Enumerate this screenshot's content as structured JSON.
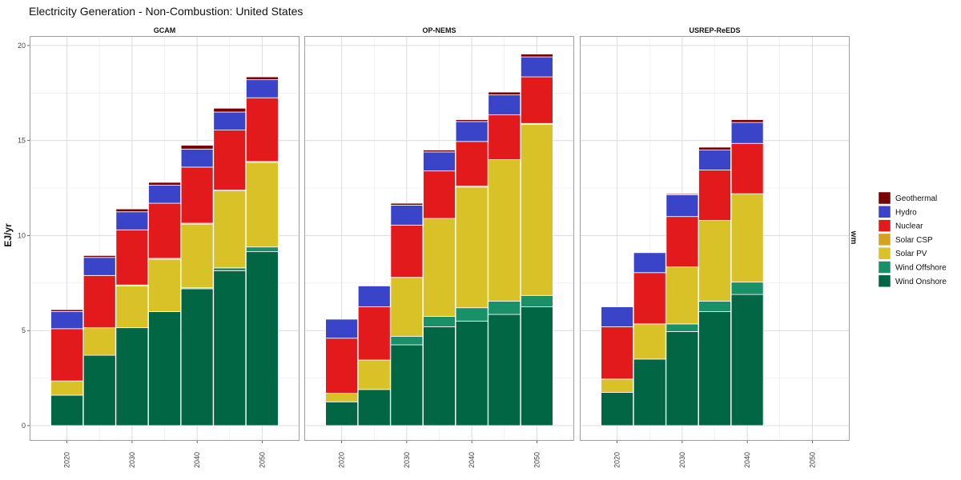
{
  "chart_data": {
    "type": "bar",
    "stacked": true,
    "title": "Electricity Generation - Non-Combustion: United States",
    "ylabel": "EJ/yr",
    "right_label": "wm",
    "ylim": [
      -0.8,
      20.5
    ],
    "yticks": [
      0,
      5,
      10,
      15,
      20
    ],
    "grid": true,
    "legend_position": "right",
    "x_ticks": [
      2020,
      2030,
      2040,
      2050
    ],
    "x_range": [
      2015,
      2055
    ],
    "series": [
      {
        "name": "Geothermal",
        "color": "#7a0000"
      },
      {
        "name": "Hydro",
        "color": "#3a44c8"
      },
      {
        "name": "Nuclear",
        "color": "#e31a1c"
      },
      {
        "name": "Solar CSP",
        "color": "#d4a21e"
      },
      {
        "name": "Solar PV",
        "color": "#d9c227"
      },
      {
        "name": "Wind Offshore",
        "color": "#1a9068"
      },
      {
        "name": "Wind Onshore",
        "color": "#006643"
      }
    ],
    "panels": [
      {
        "name": "GCAM",
        "bars": [
          {
            "x": 2020,
            "values": {
              "Wind Onshore": 1.6,
              "Wind Offshore": 0,
              "Solar PV": 0.75,
              "Solar CSP": 0,
              "Nuclear": 2.75,
              "Hydro": 0.9,
              "Geothermal": 0.1
            }
          },
          {
            "x": 2025,
            "values": {
              "Wind Onshore": 3.7,
              "Wind Offshore": 0,
              "Solar PV": 1.45,
              "Solar CSP": 0,
              "Nuclear": 2.75,
              "Hydro": 0.95,
              "Geothermal": 0.1
            }
          },
          {
            "x": 2030,
            "values": {
              "Wind Onshore": 5.15,
              "Wind Offshore": 0,
              "Solar PV": 2.2,
              "Solar CSP": 0.05,
              "Nuclear": 2.9,
              "Hydro": 0.95,
              "Geothermal": 0.15
            }
          },
          {
            "x": 2035,
            "values": {
              "Wind Onshore": 6.0,
              "Wind Offshore": 0,
              "Solar PV": 2.75,
              "Solar CSP": 0.05,
              "Nuclear": 2.9,
              "Hydro": 0.95,
              "Geothermal": 0.15
            }
          },
          {
            "x": 2040,
            "values": {
              "Wind Onshore": 7.2,
              "Wind Offshore": 0.05,
              "Solar PV": 3.35,
              "Solar CSP": 0.05,
              "Nuclear": 2.95,
              "Hydro": 0.95,
              "Geothermal": 0.2
            }
          },
          {
            "x": 2045,
            "values": {
              "Wind Onshore": 8.15,
              "Wind Offshore": 0.15,
              "Solar PV": 4.05,
              "Solar CSP": 0.05,
              "Nuclear": 3.15,
              "Hydro": 0.95,
              "Geothermal": 0.2
            }
          },
          {
            "x": 2050,
            "values": {
              "Wind Onshore": 9.15,
              "Wind Offshore": 0.25,
              "Solar PV": 4.45,
              "Solar CSP": 0.05,
              "Nuclear": 3.35,
              "Hydro": 0.95,
              "Geothermal": 0.15
            }
          }
        ]
      },
      {
        "name": "OP-NEMS",
        "bars": [
          {
            "x": 2020,
            "values": {
              "Wind Onshore": 1.25,
              "Wind Offshore": 0,
              "Solar PV": 0.45,
              "Solar CSP": 0,
              "Nuclear": 2.9,
              "Hydro": 1.0,
              "Geothermal": 0
            }
          },
          {
            "x": 2025,
            "values": {
              "Wind Onshore": 1.9,
              "Wind Offshore": 0,
              "Solar PV": 1.55,
              "Solar CSP": 0,
              "Nuclear": 2.8,
              "Hydro": 1.1,
              "Geothermal": 0
            }
          },
          {
            "x": 2030,
            "values": {
              "Wind Onshore": 4.25,
              "Wind Offshore": 0.45,
              "Solar PV": 3.1,
              "Solar CSP": 0,
              "Nuclear": 2.75,
              "Hydro": 1.05,
              "Geothermal": 0.1
            }
          },
          {
            "x": 2035,
            "values": {
              "Wind Onshore": 5.2,
              "Wind Offshore": 0.55,
              "Solar PV": 5.15,
              "Solar CSP": 0,
              "Nuclear": 2.5,
              "Hydro": 1.0,
              "Geothermal": 0.1
            }
          },
          {
            "x": 2040,
            "values": {
              "Wind Onshore": 5.5,
              "Wind Offshore": 0.7,
              "Solar PV": 6.35,
              "Solar CSP": 0.05,
              "Nuclear": 2.35,
              "Hydro": 1.05,
              "Geothermal": 0.1
            }
          },
          {
            "x": 2045,
            "values": {
              "Wind Onshore": 5.85,
              "Wind Offshore": 0.7,
              "Solar PV": 7.45,
              "Solar CSP": 0,
              "Nuclear": 2.35,
              "Hydro": 1.05,
              "Geothermal": 0.15
            }
          },
          {
            "x": 2050,
            "values": {
              "Wind Onshore": 6.25,
              "Wind Offshore": 0.6,
              "Solar PV": 9.0,
              "Solar CSP": 0.05,
              "Nuclear": 2.45,
              "Hydro": 1.05,
              "Geothermal": 0.15
            }
          }
        ]
      },
      {
        "name": "USREP-ReEDS",
        "bars": [
          {
            "x": 2020,
            "values": {
              "Wind Onshore": 1.75,
              "Wind Offshore": 0,
              "Solar PV": 0.7,
              "Solar CSP": 0,
              "Nuclear": 2.75,
              "Hydro": 1.05,
              "Geothermal": 0
            }
          },
          {
            "x": 2025,
            "values": {
              "Wind Onshore": 3.5,
              "Wind Offshore": 0,
              "Solar PV": 1.85,
              "Solar CSP": 0,
              "Nuclear": 2.7,
              "Hydro": 1.05,
              "Geothermal": 0
            }
          },
          {
            "x": 2030,
            "values": {
              "Wind Onshore": 4.95,
              "Wind Offshore": 0.4,
              "Solar PV": 3.0,
              "Solar CSP": 0,
              "Nuclear": 2.65,
              "Hydro": 1.15,
              "Geothermal": 0.05
            }
          },
          {
            "x": 2035,
            "values": {
              "Wind Onshore": 6.0,
              "Wind Offshore": 0.55,
              "Solar PV": 4.25,
              "Solar CSP": 0,
              "Nuclear": 2.65,
              "Hydro": 1.05,
              "Geothermal": 0.15
            }
          },
          {
            "x": 2040,
            "values": {
              "Wind Onshore": 6.9,
              "Wind Offshore": 0.65,
              "Solar PV": 4.65,
              "Solar CSP": 0,
              "Nuclear": 2.65,
              "Hydro": 1.1,
              "Geothermal": 0.15
            }
          }
        ]
      }
    ]
  }
}
